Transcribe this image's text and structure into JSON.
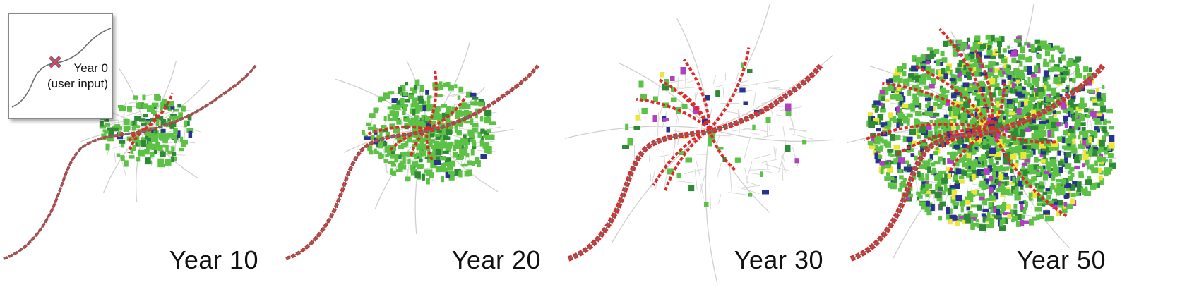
{
  "inset": {
    "line1": "Year 0",
    "line2": "(user input)"
  },
  "panels": [
    {
      "label": "Year 10"
    },
    {
      "label": "Year 20"
    },
    {
      "label": "Year 30"
    },
    {
      "label": "Year 50"
    }
  ],
  "colors": {
    "road_main": "#6e6e6e",
    "road_minor": "#d8d8d8",
    "downtown": "#e02a2a",
    "green_light": "#5cc245",
    "green_dark": "#2e8a36",
    "blue": "#27338f",
    "yellow": "#ece63a",
    "magenta": "#b03fc4",
    "seed_x": "#e8502c",
    "seed_x_outline": "#3d56c7"
  }
}
